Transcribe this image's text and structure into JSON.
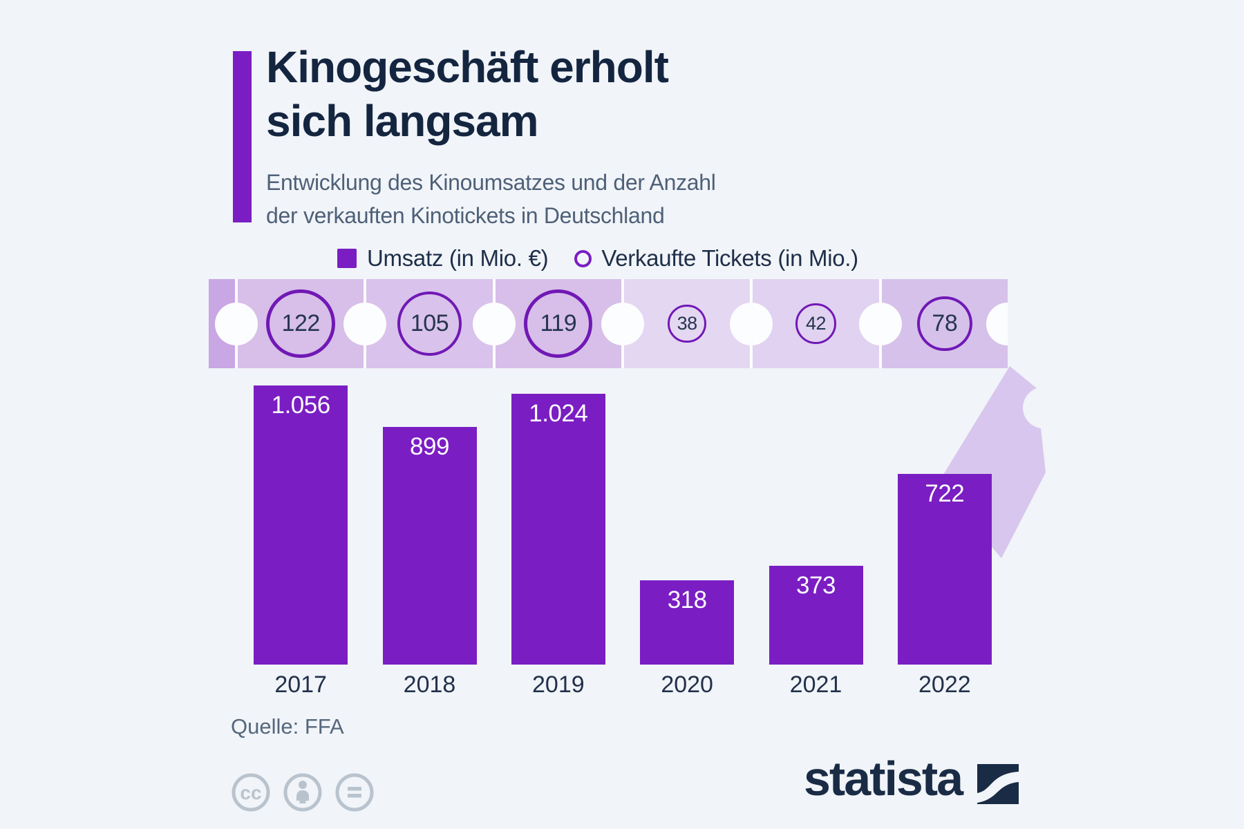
{
  "header": {
    "title_lines": [
      "Kinogeschäft erholt",
      "sich langsam"
    ],
    "subtitle_lines": [
      "Entwicklung des Kinoumsatzes und der Anzahl",
      "der verkauften Kinotickets in Deutschland"
    ]
  },
  "legend": {
    "revenue_label": "Umsatz (in Mio. €)",
    "tickets_label": "Verkaufte Tickets (in Mio.)"
  },
  "chart_data": {
    "type": "bar",
    "title": "Kinogeschäft erholt sich langsam",
    "subtitle": "Entwicklung des Kinoumsatzes und der Anzahl der verkauften Kinotickets in Deutschland",
    "categories": [
      "2017",
      "2018",
      "2019",
      "2020",
      "2021",
      "2022"
    ],
    "series": [
      {
        "name": "Umsatz (in Mio. €)",
        "type": "bar",
        "values": [
          1056,
          899,
          1024,
          318,
          373,
          722
        ],
        "display_labels": [
          "1.056",
          "899",
          "1.024",
          "318",
          "373",
          "722"
        ]
      },
      {
        "name": "Verkaufte Tickets (in Mio.)",
        "type": "circle-marker",
        "values": [
          122,
          105,
          119,
          38,
          42,
          78
        ]
      }
    ],
    "ylim": [
      0,
      1100
    ],
    "grid": false,
    "legend_position": "top"
  },
  "footer": {
    "source": "Quelle: FFA",
    "license_icons": [
      "cc-icon",
      "attribution-person-icon",
      "equals-icon"
    ],
    "brand": "statista"
  },
  "colors": {
    "background": "#f1f4f8",
    "bar_purple": "#7a1ec3",
    "circle_stroke": "#7118b5",
    "title_navy": "#142540",
    "subtitle_gray": "#4e6078",
    "strip_dark": "#c9a6e4",
    "strip_segments": [
      "#d7bfe9",
      "#d9c2eb",
      "#d7bfe9",
      "#e4d7f2",
      "#e0d2f0",
      "#d6c1ea"
    ],
    "stub_purple": "#d8c6ee",
    "footer_icon_gray": "#b9c3ce",
    "source_gray": "#55677c",
    "brand_navy": "#1a2b45"
  }
}
